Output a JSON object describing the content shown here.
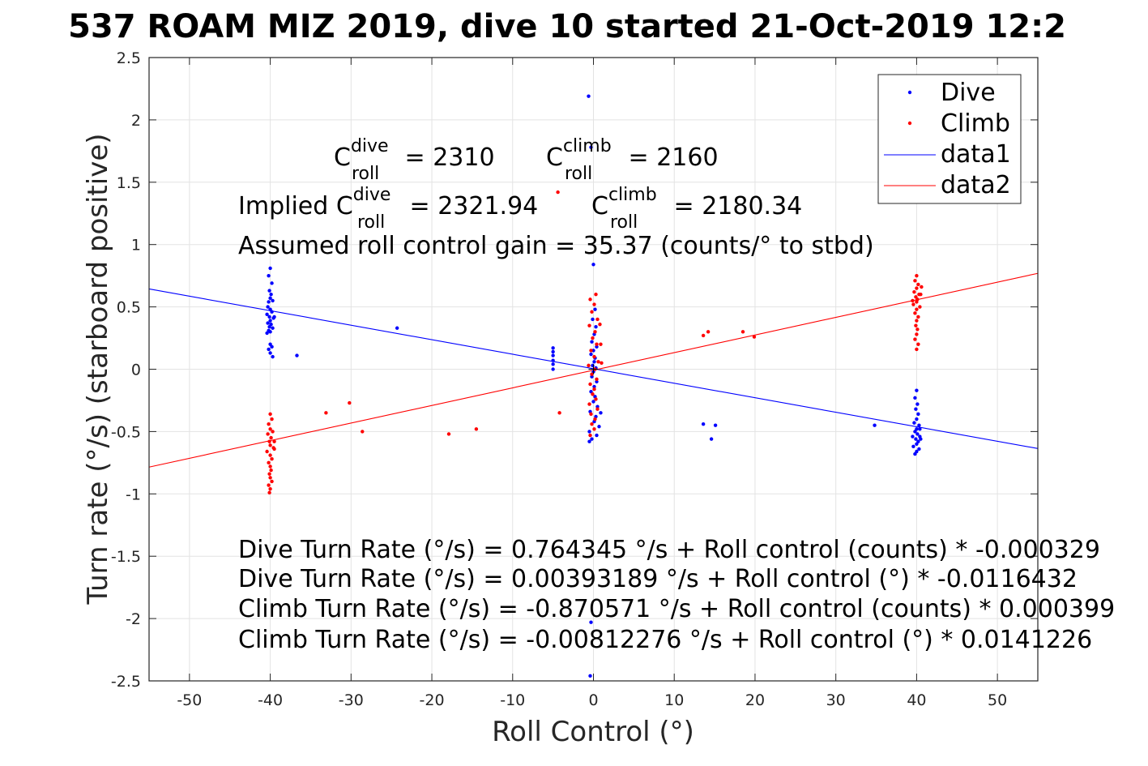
{
  "chart_data": {
    "type": "scatter",
    "title": "537 ROAM MIZ 2019, dive 10 started 21-Oct-2019 12:2",
    "xlabel": "Roll Control (°)",
    "ylabel": "Turn rate (°/s) (starboard positive)",
    "xlim": [
      -55,
      55
    ],
    "ylim": [
      -2.5,
      2.5
    ],
    "xticks": [
      "-50",
      "-40",
      "-30",
      "-20",
      "-10",
      "0",
      "10",
      "20",
      "30",
      "40",
      "50"
    ],
    "yticks": [
      "-2.5",
      "-2",
      "-1.5",
      "-1",
      "-0.5",
      "0",
      "0.5",
      "1",
      "1.5",
      "2",
      "2.5"
    ],
    "grid": true,
    "legend_position": "top-right",
    "legend": [
      "Dive",
      "Climb",
      "data1",
      "data2"
    ],
    "colors": {
      "dive": "#0000ff",
      "climb": "#ff0000"
    },
    "series": [
      {
        "name": "Dive",
        "kind": "points",
        "color": "#0000ff",
        "points": [
          [
            -40,
            0.81
          ],
          [
            -40.2,
            0.75
          ],
          [
            -39.8,
            0.69
          ],
          [
            -40.1,
            0.63
          ],
          [
            -39.9,
            0.6
          ],
          [
            -40,
            0.57
          ],
          [
            -40.2,
            0.54
          ],
          [
            -39.7,
            0.55
          ],
          [
            -40.3,
            0.5
          ],
          [
            -40,
            0.48
          ],
          [
            -39.8,
            0.46
          ],
          [
            -40.4,
            0.44
          ],
          [
            -40.1,
            0.42
          ],
          [
            -39.6,
            0.41
          ],
          [
            -40,
            0.39
          ],
          [
            -40.3,
            0.37
          ],
          [
            -39.9,
            0.36
          ],
          [
            -40.1,
            0.34
          ],
          [
            -39.7,
            0.33
          ],
          [
            -40.2,
            0.31
          ],
          [
            -40,
            0.3
          ],
          [
            -39.5,
            0.42
          ],
          [
            -40.4,
            0.29
          ],
          [
            -40,
            0.2
          ],
          [
            -39.8,
            0.18
          ],
          [
            -40.2,
            0.16
          ],
          [
            -40,
            0.13
          ],
          [
            -39.7,
            0.1
          ],
          [
            -36.7,
            0.11
          ],
          [
            -24.3,
            0.33
          ],
          [
            -5,
            0.17
          ],
          [
            -5,
            0.14
          ],
          [
            -5,
            0.11
          ],
          [
            -5,
            0.07
          ],
          [
            -5,
            0.04
          ],
          [
            -5,
            0.0
          ],
          [
            -0.6,
            2.19
          ],
          [
            -0.3,
            1.78
          ],
          [
            0,
            0.84
          ],
          [
            0.2,
            0.48
          ],
          [
            -0.1,
            0.4
          ],
          [
            0.3,
            0.34
          ],
          [
            0.1,
            0.28
          ],
          [
            -0.2,
            0.22
          ],
          [
            0.4,
            0.18
          ],
          [
            0,
            0.15
          ],
          [
            -0.3,
            0.12
          ],
          [
            0.2,
            0.09
          ],
          [
            0.1,
            0.06
          ],
          [
            -0.1,
            0.03
          ],
          [
            0.3,
            0.01
          ],
          [
            0,
            -0.02
          ],
          [
            -0.2,
            -0.06
          ],
          [
            0.4,
            -0.1
          ],
          [
            0.1,
            -0.14
          ],
          [
            -0.3,
            -0.18
          ],
          [
            0.2,
            -0.22
          ],
          [
            0,
            -0.26
          ],
          [
            0.5,
            -0.3
          ],
          [
            -0.4,
            -0.34
          ],
          [
            0.3,
            -0.38
          ],
          [
            0.1,
            -0.42
          ],
          [
            0.7,
            -0.46
          ],
          [
            0.9,
            -0.35
          ],
          [
            -0.5,
            -0.5
          ],
          [
            0.4,
            -0.53
          ],
          [
            -0.2,
            -0.56
          ],
          [
            -0.5,
            -0.58
          ],
          [
            -0.3,
            -2.03
          ],
          [
            -0.4,
            -2.46
          ],
          [
            13.6,
            -0.44
          ],
          [
            14.6,
            -0.56
          ],
          [
            15.1,
            -0.45
          ],
          [
            34.8,
            -0.45
          ],
          [
            40,
            -0.17
          ],
          [
            39.8,
            -0.23
          ],
          [
            40.1,
            -0.28
          ],
          [
            39.9,
            -0.32
          ],
          [
            40.2,
            -0.36
          ],
          [
            40,
            -0.4
          ],
          [
            39.7,
            -0.43
          ],
          [
            40.3,
            -0.45
          ],
          [
            40,
            -0.48
          ],
          [
            39.8,
            -0.5
          ],
          [
            40.1,
            -0.52
          ],
          [
            40.4,
            -0.54
          ],
          [
            39.9,
            -0.56
          ],
          [
            40.2,
            -0.58
          ],
          [
            40,
            -0.6
          ],
          [
            39.6,
            -0.62
          ],
          [
            40.3,
            -0.64
          ],
          [
            40,
            -0.66
          ],
          [
            39.8,
            -0.68
          ],
          [
            40.5,
            -0.56
          ],
          [
            40.4,
            -0.48
          ],
          [
            39.5,
            -0.54
          ]
        ]
      },
      {
        "name": "Climb",
        "kind": "points",
        "color": "#ff0000",
        "points": [
          [
            -40,
            -0.36
          ],
          [
            -39.8,
            -0.4
          ],
          [
            -40.2,
            -0.44
          ],
          [
            -40,
            -0.48
          ],
          [
            -39.7,
            -0.5
          ],
          [
            -40.3,
            -0.52
          ],
          [
            -39.9,
            -0.55
          ],
          [
            -40.1,
            -0.58
          ],
          [
            -40,
            -0.61
          ],
          [
            -39.6,
            -0.63
          ],
          [
            -40.4,
            -0.66
          ],
          [
            -40,
            -0.69
          ],
          [
            -39.8,
            -0.72
          ],
          [
            -40.2,
            -0.75
          ],
          [
            -40,
            -0.78
          ],
          [
            -39.9,
            -0.81
          ],
          [
            -40.1,
            -0.84
          ],
          [
            -40,
            -0.87
          ],
          [
            -39.8,
            -0.9
          ],
          [
            -40.2,
            -0.93
          ],
          [
            -40,
            -0.96
          ],
          [
            -40.1,
            -0.99
          ],
          [
            -39.5,
            -0.58
          ],
          [
            -39.5,
            -0.64
          ],
          [
            -33.1,
            -0.35
          ],
          [
            -30.2,
            -0.27
          ],
          [
            -28.6,
            -0.5
          ],
          [
            -17.9,
            -0.52
          ],
          [
            -14.5,
            -0.48
          ],
          [
            -4.4,
            1.42
          ],
          [
            -4.2,
            -0.35
          ],
          [
            -0.4,
            0.56
          ],
          [
            0.3,
            0.6
          ],
          [
            0.1,
            0.52
          ],
          [
            -0.2,
            0.46
          ],
          [
            0.5,
            0.4
          ],
          [
            -0.5,
            0.35
          ],
          [
            0.2,
            0.3
          ],
          [
            -0.1,
            0.25
          ],
          [
            0.4,
            0.2
          ],
          [
            -0.3,
            0.15
          ],
          [
            0.1,
            0.1
          ],
          [
            0.6,
            0.06
          ],
          [
            -0.6,
            0.03
          ],
          [
            0.2,
            0.0
          ],
          [
            -0.2,
            -0.04
          ],
          [
            0.4,
            -0.08
          ],
          [
            -0.4,
            -0.12
          ],
          [
            0.1,
            -0.16
          ],
          [
            -0.1,
            -0.2
          ],
          [
            0.3,
            -0.24
          ],
          [
            -0.5,
            -0.28
          ],
          [
            0.5,
            -0.32
          ],
          [
            -0.3,
            -0.36
          ],
          [
            0.2,
            -0.4
          ],
          [
            -0.2,
            -0.44
          ],
          [
            0.1,
            -0.48
          ],
          [
            -0.4,
            -0.53
          ],
          [
            0.8,
            0.36
          ],
          [
            0.9,
            0.2
          ],
          [
            1.0,
            0.05
          ],
          [
            13.6,
            0.27
          ],
          [
            14.2,
            0.3
          ],
          [
            18.5,
            0.3
          ],
          [
            19.9,
            0.26
          ],
          [
            40,
            0.75
          ],
          [
            39.8,
            0.71
          ],
          [
            40.2,
            0.68
          ],
          [
            40,
            0.65
          ],
          [
            39.7,
            0.62
          ],
          [
            40.3,
            0.6
          ],
          [
            39.9,
            0.58
          ],
          [
            40.1,
            0.56
          ],
          [
            40,
            0.54
          ],
          [
            39.6,
            0.52
          ],
          [
            40.4,
            0.5
          ],
          [
            40,
            0.48
          ],
          [
            39.8,
            0.45
          ],
          [
            40.2,
            0.42
          ],
          [
            40,
            0.39
          ],
          [
            39.9,
            0.35
          ],
          [
            40.1,
            0.32
          ],
          [
            40,
            0.28
          ],
          [
            39.8,
            0.24
          ],
          [
            40.2,
            0.2
          ],
          [
            40,
            0.16
          ],
          [
            40.5,
            0.6
          ],
          [
            39.5,
            0.55
          ],
          [
            40.6,
            0.66
          ]
        ]
      },
      {
        "name": "data1",
        "kind": "line",
        "color": "#0000ff",
        "x": [
          -55,
          55
        ],
        "y": [
          0.644,
          -0.636
        ]
      },
      {
        "name": "data2",
        "kind": "line",
        "color": "#ff0000",
        "x": [
          -55,
          55
        ],
        "y": [
          -0.785,
          0.769
        ]
      }
    ],
    "annotations": {
      "c_dive_prefix": "C",
      "c_dive_sup": "dive",
      "c_dive_sub": "roll",
      "c_dive_value": " = 2310",
      "c_climb_prefix": "C",
      "c_climb_sup": "climb",
      "c_climb_sub": "roll",
      "c_climb_value": " = 2160",
      "implied_prefix": "Implied C",
      "implied_dive_sup": "dive",
      "implied_dive_sub": "roll",
      "implied_dive_value": " = 2321.94",
      "implied_climb_prefix": "C",
      "implied_climb_sup": "climb",
      "implied_climb_sub": "roll",
      "implied_climb_value": " = 2180.34",
      "gain": "Assumed roll control gain = 35.37 (counts/° to stbd)",
      "eq1": "Dive Turn Rate (°/s) = 0.764345 °/s + Roll control (counts) * -0.000329",
      "eq2": "Dive Turn Rate (°/s) = 0.00393189 °/s + Roll control (°) * -0.0116432",
      "eq3": "Climb Turn Rate (°/s) = -0.870571 °/s + Roll control (counts) * 0.000399",
      "eq4": "Climb Turn Rate (°/s) = -0.00812276 °/s + Roll control (°) * 0.0141226"
    }
  }
}
